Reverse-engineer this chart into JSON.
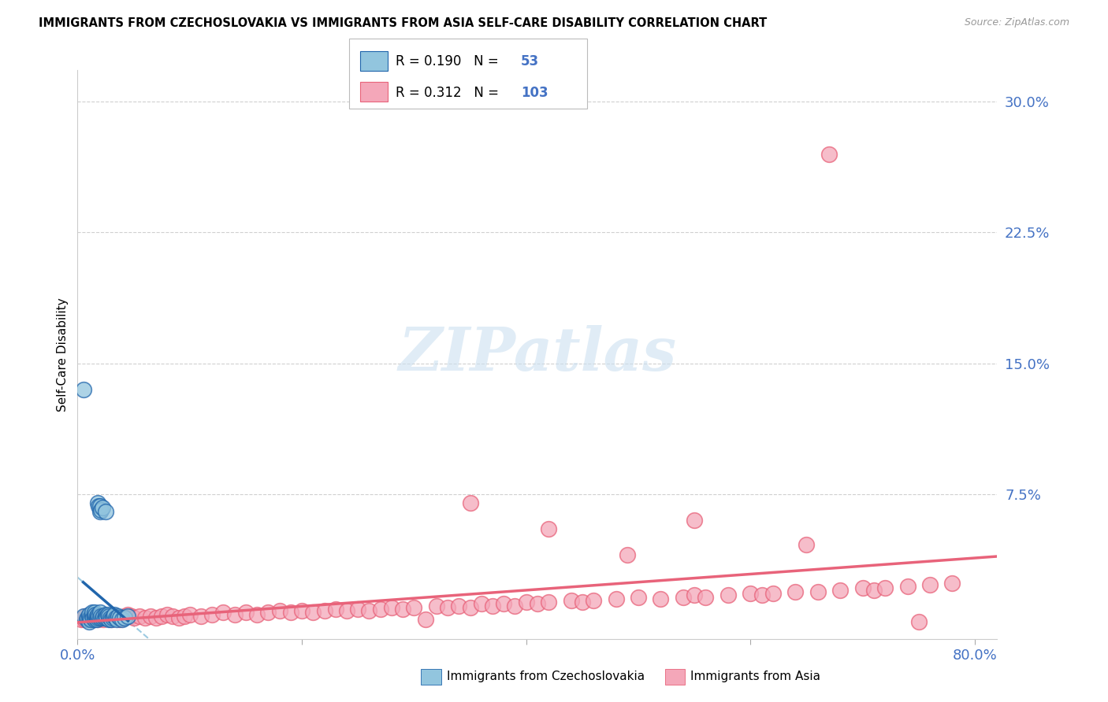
{
  "title": "IMMIGRANTS FROM CZECHOSLOVAKIA VS IMMIGRANTS FROM ASIA SELF-CARE DISABILITY CORRELATION CHART",
  "source": "Source: ZipAtlas.com",
  "ylabel": "Self-Care Disability",
  "ytick_vals": [
    0.075,
    0.15,
    0.225,
    0.3
  ],
  "ytick_labels": [
    "7.5%",
    "15.0%",
    "22.5%",
    "30.0%"
  ],
  "xlim": [
    0.0,
    0.82
  ],
  "ylim": [
    -0.008,
    0.318
  ],
  "legend_R_blue": "0.190",
  "legend_N_blue": "53",
  "legend_R_pink": "0.312",
  "legend_N_pink": "103",
  "blue_color": "#92c5de",
  "pink_color": "#f4a7b9",
  "blue_line_color": "#2166ac",
  "pink_line_color": "#e8637a",
  "blue_dashed_color": "#92c5de",
  "axis_label_color": "#4472c4",
  "grid_color": "#d0d0d0",
  "watermark_color": "#cce0f0",
  "blue_scatter_x": [
    0.005,
    0.008,
    0.009,
    0.01,
    0.01,
    0.01,
    0.011,
    0.012,
    0.013,
    0.013,
    0.014,
    0.015,
    0.015,
    0.015,
    0.016,
    0.016,
    0.017,
    0.017,
    0.018,
    0.018,
    0.018,
    0.019,
    0.019,
    0.02,
    0.02,
    0.02,
    0.02,
    0.021,
    0.021,
    0.022,
    0.022,
    0.023,
    0.024,
    0.025,
    0.025,
    0.026,
    0.026,
    0.027,
    0.028,
    0.028,
    0.029,
    0.03,
    0.031,
    0.032,
    0.033,
    0.034,
    0.035,
    0.036,
    0.038,
    0.04,
    0.042,
    0.045,
    0.005
  ],
  "blue_scatter_y": [
    0.005,
    0.003,
    0.004,
    0.002,
    0.005,
    0.006,
    0.004,
    0.003,
    0.005,
    0.007,
    0.004,
    0.003,
    0.006,
    0.007,
    0.004,
    0.006,
    0.003,
    0.005,
    0.004,
    0.006,
    0.07,
    0.005,
    0.068,
    0.004,
    0.065,
    0.007,
    0.068,
    0.005,
    0.066,
    0.004,
    0.067,
    0.005,
    0.004,
    0.006,
    0.065,
    0.005,
    0.004,
    0.006,
    0.003,
    0.005,
    0.004,
    0.003,
    0.004,
    0.005,
    0.006,
    0.004,
    0.003,
    0.005,
    0.004,
    0.003,
    0.004,
    0.005,
    0.135
  ],
  "pink_scatter_x": [
    0.003,
    0.005,
    0.006,
    0.007,
    0.008,
    0.009,
    0.01,
    0.011,
    0.012,
    0.013,
    0.014,
    0.015,
    0.016,
    0.017,
    0.018,
    0.019,
    0.02,
    0.022,
    0.023,
    0.025,
    0.027,
    0.028,
    0.03,
    0.032,
    0.034,
    0.036,
    0.038,
    0.04,
    0.042,
    0.045,
    0.048,
    0.05,
    0.055,
    0.06,
    0.065,
    0.07,
    0.075,
    0.08,
    0.085,
    0.09,
    0.095,
    0.1,
    0.11,
    0.12,
    0.13,
    0.14,
    0.15,
    0.16,
    0.17,
    0.18,
    0.19,
    0.2,
    0.21,
    0.22,
    0.23,
    0.24,
    0.25,
    0.26,
    0.27,
    0.28,
    0.29,
    0.3,
    0.32,
    0.33,
    0.34,
    0.35,
    0.36,
    0.37,
    0.38,
    0.39,
    0.4,
    0.41,
    0.42,
    0.44,
    0.45,
    0.46,
    0.48,
    0.5,
    0.52,
    0.54,
    0.55,
    0.56,
    0.58,
    0.6,
    0.61,
    0.62,
    0.64,
    0.65,
    0.66,
    0.68,
    0.7,
    0.71,
    0.72,
    0.74,
    0.75,
    0.76,
    0.78,
    0.49,
    0.31,
    0.35,
    0.42,
    0.55,
    0.67
  ],
  "pink_scatter_y": [
    0.003,
    0.004,
    0.003,
    0.005,
    0.004,
    0.003,
    0.004,
    0.005,
    0.003,
    0.004,
    0.005,
    0.003,
    0.004,
    0.005,
    0.003,
    0.004,
    0.005,
    0.004,
    0.003,
    0.004,
    0.005,
    0.004,
    0.003,
    0.004,
    0.005,
    0.004,
    0.003,
    0.004,
    0.005,
    0.006,
    0.005,
    0.004,
    0.005,
    0.004,
    0.005,
    0.004,
    0.005,
    0.006,
    0.005,
    0.004,
    0.005,
    0.006,
    0.005,
    0.006,
    0.007,
    0.006,
    0.007,
    0.006,
    0.007,
    0.008,
    0.007,
    0.008,
    0.007,
    0.008,
    0.009,
    0.008,
    0.009,
    0.008,
    0.009,
    0.01,
    0.009,
    0.01,
    0.011,
    0.01,
    0.011,
    0.01,
    0.012,
    0.011,
    0.012,
    0.011,
    0.013,
    0.012,
    0.013,
    0.014,
    0.013,
    0.014,
    0.015,
    0.016,
    0.015,
    0.016,
    0.017,
    0.016,
    0.017,
    0.018,
    0.017,
    0.018,
    0.019,
    0.046,
    0.019,
    0.02,
    0.021,
    0.02,
    0.021,
    0.022,
    0.002,
    0.023,
    0.024,
    0.04,
    0.003,
    0.07,
    0.055,
    0.06,
    0.27
  ]
}
